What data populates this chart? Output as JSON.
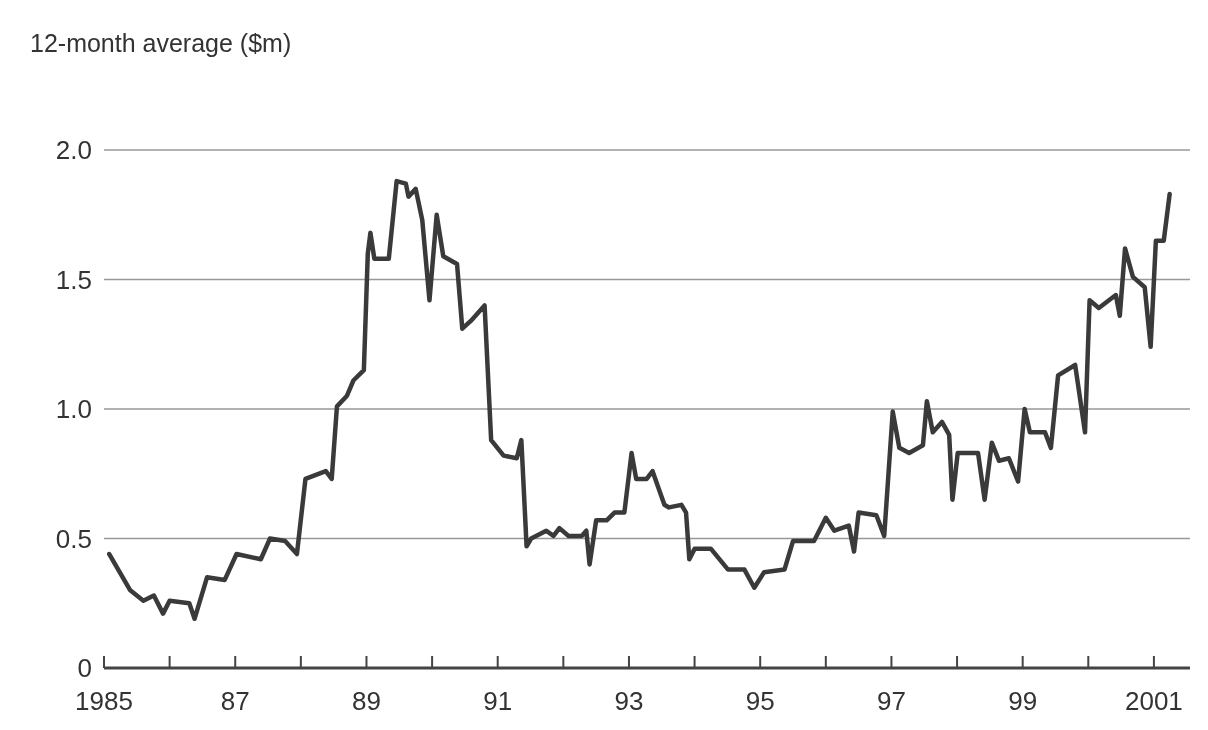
{
  "chart_data": {
    "type": "line",
    "ylabel": "12-month average ($m)",
    "xlim": [
      1985,
      2001.55
    ],
    "xticks": [
      {
        "value": 1985,
        "label": "1985"
      },
      {
        "value": 1986,
        "label": null
      },
      {
        "value": 1987,
        "label": "87"
      },
      {
        "value": 1988,
        "label": null
      },
      {
        "value": 1989,
        "label": "89"
      },
      {
        "value": 1990,
        "label": null
      },
      {
        "value": 1991,
        "label": "91"
      },
      {
        "value": 1992,
        "label": null
      },
      {
        "value": 1993,
        "label": "93"
      },
      {
        "value": 1994,
        "label": null
      },
      {
        "value": 1995,
        "label": "95"
      },
      {
        "value": 1996,
        "label": null
      },
      {
        "value": 1997,
        "label": "97"
      },
      {
        "value": 1998,
        "label": null
      },
      {
        "value": 1999,
        "label": "99"
      },
      {
        "value": 2000,
        "label": null
      },
      {
        "value": 2001,
        "label": "2001"
      }
    ],
    "ylim": [
      0,
      2.0
    ],
    "yticks": [
      0,
      {
        "value": 0.5,
        "label": "0.5"
      },
      {
        "value": 1,
        "label": "1.0"
      },
      {
        "value": 1.5,
        "label": "1.5"
      },
      {
        "value": 2,
        "label": "2.0"
      }
    ],
    "grid": "y",
    "marker": "none",
    "line_style": "solid",
    "series": [
      {
        "color": "#3a3a3a",
        "x": [
          1985.08,
          1985.4,
          1985.6,
          1985.76,
          1985.9,
          1986.0,
          1986.3,
          1986.38,
          1986.57,
          1986.84,
          1987.02,
          1987.39,
          1987.53,
          1987.76,
          1987.94,
          1988.07,
          1988.38,
          1988.47,
          1988.55,
          1988.7,
          1988.8,
          1988.96,
          1989.02,
          1989.06,
          1989.12,
          1989.34,
          1989.46,
          1989.6,
          1989.64,
          1989.75,
          1989.85,
          1989.96,
          1990.07,
          1990.17,
          1990.38,
          1990.46,
          1990.59,
          1990.8,
          1990.9,
          1991.09,
          1991.29,
          1991.36,
          1991.44,
          1991.51,
          1991.74,
          1991.85,
          1991.94,
          1992.08,
          1992.28,
          1992.35,
          1992.4,
          1992.5,
          1992.66,
          1992.78,
          1992.93,
          1993.04,
          1993.11,
          1993.27,
          1993.36,
          1993.54,
          1993.61,
          1993.8,
          1993.87,
          1993.92,
          1994.0,
          1994.25,
          1994.51,
          1994.76,
          1994.91,
          1995.06,
          1995.37,
          1995.5,
          1995.82,
          1996.0,
          1996.13,
          1996.35,
          1996.43,
          1996.5,
          1996.77,
          1996.89,
          1997.02,
          1997.12,
          1997.27,
          1997.48,
          1997.54,
          1997.63,
          1997.77,
          1997.88,
          1997.93,
          1998.01,
          1998.32,
          1998.42,
          1998.53,
          1998.64,
          1998.79,
          1998.93,
          1999.03,
          1999.11,
          1999.34,
          1999.43,
          1999.54,
          1999.8,
          1999.95,
          2000.02,
          2000.16,
          2000.42,
          2000.48,
          2000.56,
          2000.68,
          2000.86,
          2000.95,
          2001.03,
          2001.15,
          2001.24
        ],
        "values": [
          0.44,
          0.3,
          0.26,
          0.28,
          0.21,
          0.26,
          0.25,
          0.19,
          0.35,
          0.34,
          0.44,
          0.42,
          0.5,
          0.49,
          0.44,
          0.73,
          0.76,
          0.73,
          1.01,
          1.05,
          1.11,
          1.15,
          1.6,
          1.68,
          1.58,
          1.58,
          1.88,
          1.87,
          1.82,
          1.85,
          1.73,
          1.42,
          1.75,
          1.59,
          1.56,
          1.31,
          1.34,
          1.4,
          0.88,
          0.82,
          0.81,
          0.88,
          0.47,
          0.5,
          0.53,
          0.51,
          0.54,
          0.51,
          0.51,
          0.53,
          0.4,
          0.57,
          0.57,
          0.6,
          0.6,
          0.83,
          0.73,
          0.73,
          0.76,
          0.63,
          0.62,
          0.63,
          0.6,
          0.42,
          0.46,
          0.46,
          0.38,
          0.38,
          0.31,
          0.37,
          0.38,
          0.49,
          0.49,
          0.58,
          0.53,
          0.55,
          0.45,
          0.6,
          0.59,
          0.51,
          0.99,
          0.85,
          0.83,
          0.86,
          1.03,
          0.91,
          0.95,
          0.9,
          0.65,
          0.83,
          0.83,
          0.65,
          0.87,
          0.8,
          0.81,
          0.72,
          1.0,
          0.91,
          0.91,
          0.85,
          1.13,
          1.17,
          0.91,
          1.42,
          1.39,
          1.44,
          1.36,
          1.62,
          1.51,
          1.47,
          1.24,
          1.65,
          1.65,
          1.83
        ]
      }
    ]
  }
}
